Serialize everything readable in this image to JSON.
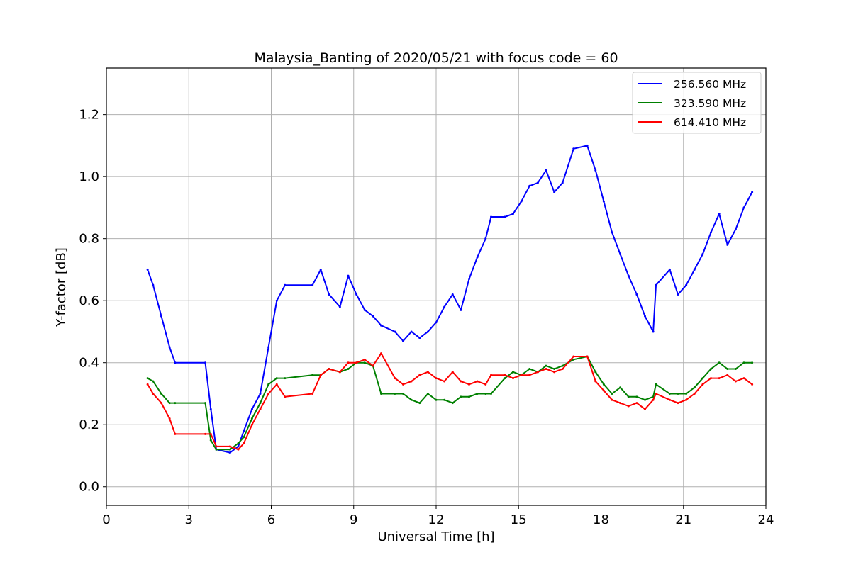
{
  "chart_data": {
    "type": "line",
    "title": "Malaysia_Banting of 2020/05/21 with focus code = 60",
    "xlabel": "Universal Time [h]",
    "ylabel": "Y-factor [dB]",
    "xlim": [
      0,
      24
    ],
    "ylim": [
      -0.06,
      1.35
    ],
    "xticks": [
      0,
      3,
      6,
      9,
      12,
      15,
      18,
      21,
      24
    ],
    "xtick_labels": [
      "0",
      "3",
      "6",
      "9",
      "12",
      "15",
      "18",
      "21",
      "24"
    ],
    "yticks": [
      0.0,
      0.2,
      0.4,
      0.6,
      0.8,
      1.0,
      1.2
    ],
    "ytick_labels": [
      "0.0",
      "0.2",
      "0.4",
      "0.6",
      "0.8",
      "1.0",
      "1.2"
    ],
    "grid": true,
    "legend_position": "top-right",
    "series": [
      {
        "name": "256.560 MHz",
        "color": "#0000ff",
        "x": [
          1.5,
          1.7,
          2.0,
          2.3,
          2.5,
          3.6,
          3.8,
          4.0,
          4.5,
          4.8,
          5.0,
          5.3,
          5.6,
          5.9,
          6.2,
          6.5,
          7.5,
          7.8,
          8.1,
          8.5,
          8.8,
          9.1,
          9.4,
          9.7,
          10.0,
          10.5,
          10.8,
          11.1,
          11.4,
          11.7,
          12.0,
          12.3,
          12.6,
          12.9,
          13.2,
          13.5,
          13.8,
          14.0,
          14.5,
          14.8,
          15.1,
          15.4,
          15.7,
          16.0,
          16.3,
          16.6,
          17.0,
          17.5,
          17.8,
          18.1,
          18.4,
          18.7,
          19.0,
          19.3,
          19.6,
          19.9,
          20.0,
          20.5,
          20.8,
          21.1,
          21.4,
          21.7,
          22.0,
          22.3,
          22.6,
          22.9,
          23.2,
          23.5
        ],
        "y": [
          0.7,
          0.65,
          0.55,
          0.45,
          0.4,
          0.4,
          0.25,
          0.12,
          0.11,
          0.13,
          0.18,
          0.25,
          0.3,
          0.45,
          0.6,
          0.65,
          0.65,
          0.7,
          0.62,
          0.58,
          0.68,
          0.62,
          0.57,
          0.55,
          0.52,
          0.5,
          0.47,
          0.5,
          0.48,
          0.5,
          0.53,
          0.58,
          0.62,
          0.57,
          0.67,
          0.74,
          0.8,
          0.87,
          0.87,
          0.88,
          0.92,
          0.97,
          0.98,
          1.02,
          0.95,
          0.98,
          1.09,
          1.1,
          1.02,
          0.92,
          0.82,
          0.75,
          0.68,
          0.62,
          0.55,
          0.5,
          0.65,
          0.7,
          0.62,
          0.65,
          0.7,
          0.75,
          0.82,
          0.88,
          0.78,
          0.83,
          0.9,
          0.95
        ]
      },
      {
        "name": "323.590 MHz",
        "color": "#008000",
        "x": [
          1.5,
          1.7,
          2.0,
          2.3,
          2.5,
          3.6,
          3.8,
          4.0,
          4.5,
          4.8,
          5.0,
          5.3,
          5.6,
          5.9,
          6.2,
          6.5,
          7.5,
          7.8,
          8.1,
          8.5,
          8.8,
          9.1,
          9.4,
          9.7,
          10.0,
          10.5,
          10.8,
          11.1,
          11.4,
          11.7,
          12.0,
          12.3,
          12.6,
          12.9,
          13.2,
          13.5,
          13.8,
          14.0,
          14.5,
          14.8,
          15.1,
          15.4,
          15.7,
          16.0,
          16.3,
          16.6,
          17.0,
          17.5,
          17.8,
          18.1,
          18.4,
          18.7,
          19.0,
          19.3,
          19.6,
          19.9,
          20.0,
          20.5,
          20.8,
          21.1,
          21.4,
          21.7,
          22.0,
          22.3,
          22.6,
          22.9,
          23.2,
          23.5
        ],
        "y": [
          0.35,
          0.34,
          0.3,
          0.27,
          0.27,
          0.27,
          0.15,
          0.12,
          0.12,
          0.14,
          0.16,
          0.22,
          0.27,
          0.33,
          0.35,
          0.35,
          0.36,
          0.36,
          0.38,
          0.37,
          0.38,
          0.4,
          0.4,
          0.39,
          0.3,
          0.3,
          0.3,
          0.28,
          0.27,
          0.3,
          0.28,
          0.28,
          0.27,
          0.29,
          0.29,
          0.3,
          0.3,
          0.3,
          0.35,
          0.37,
          0.36,
          0.38,
          0.37,
          0.39,
          0.38,
          0.39,
          0.41,
          0.42,
          0.37,
          0.33,
          0.3,
          0.32,
          0.29,
          0.29,
          0.28,
          0.29,
          0.33,
          0.3,
          0.3,
          0.3,
          0.32,
          0.35,
          0.38,
          0.4,
          0.38,
          0.38,
          0.4,
          0.4
        ]
      },
      {
        "name": "614.410 MHz",
        "color": "#ff0000",
        "x": [
          1.5,
          1.7,
          2.0,
          2.3,
          2.5,
          3.6,
          3.8,
          4.0,
          4.5,
          4.8,
          5.0,
          5.3,
          5.6,
          5.9,
          6.2,
          6.5,
          7.5,
          7.8,
          8.1,
          8.5,
          8.8,
          9.1,
          9.4,
          9.7,
          10.0,
          10.5,
          10.8,
          11.1,
          11.4,
          11.7,
          12.0,
          12.3,
          12.6,
          12.9,
          13.2,
          13.5,
          13.8,
          14.0,
          14.5,
          14.8,
          15.1,
          15.4,
          15.7,
          16.0,
          16.3,
          16.6,
          17.0,
          17.5,
          17.8,
          18.1,
          18.4,
          18.7,
          19.0,
          19.3,
          19.6,
          19.9,
          20.0,
          20.5,
          20.8,
          21.1,
          21.4,
          21.7,
          22.0,
          22.3,
          22.6,
          22.9,
          23.2,
          23.5
        ],
        "y": [
          0.33,
          0.3,
          0.27,
          0.22,
          0.17,
          0.17,
          0.17,
          0.13,
          0.13,
          0.12,
          0.14,
          0.2,
          0.25,
          0.3,
          0.33,
          0.29,
          0.3,
          0.36,
          0.38,
          0.37,
          0.4,
          0.4,
          0.41,
          0.39,
          0.43,
          0.35,
          0.33,
          0.34,
          0.36,
          0.37,
          0.35,
          0.34,
          0.37,
          0.34,
          0.33,
          0.34,
          0.33,
          0.36,
          0.36,
          0.35,
          0.36,
          0.36,
          0.37,
          0.38,
          0.37,
          0.38,
          0.42,
          0.42,
          0.34,
          0.31,
          0.28,
          0.27,
          0.26,
          0.27,
          0.25,
          0.28,
          0.3,
          0.28,
          0.27,
          0.28,
          0.3,
          0.33,
          0.35,
          0.35,
          0.36,
          0.34,
          0.35,
          0.33
        ]
      }
    ]
  }
}
